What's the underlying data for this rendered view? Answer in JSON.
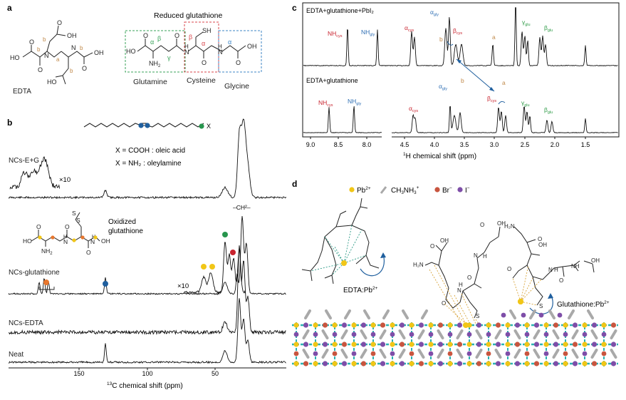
{
  "panels": {
    "a": {
      "letter": "a",
      "edta_label": "EDTA",
      "edta_atoms": {
        "ho1": "HO",
        "o1": "O",
        "oh1": "OH",
        "o2": "O",
        "n1": "N",
        "n2": "N",
        "ho2": "HO",
        "o3": "O",
        "oh2": "OH",
        "o4": "O",
        "lab_a": "a",
        "lab_b1": "b",
        "lab_b2": "b",
        "lab_b3": "b",
        "lab_b4": "b"
      },
      "glutathione_title": "Reduced glutathione",
      "glutathione_atoms": {
        "ho": "HO",
        "o1": "O",
        "nh2": "NH",
        "nh2sub": "2",
        "h1": "H",
        "n1": "N",
        "o2": "O",
        "sh": "SH",
        "o3": "O",
        "h2": "H",
        "n2": "N",
        "oh": "OH",
        "o4": "O"
      },
      "greek": {
        "alpha_glu": "α",
        "beta_glu": "β",
        "gamma_glu": "γ",
        "beta_cys": "β",
        "alpha_cys": "α",
        "alpha_gly": "α"
      },
      "residues": {
        "glutamine": "Glutamine",
        "cysteine": "Cysteine",
        "glycine": "Glycine"
      },
      "colors": {
        "glu": "#3aa35a",
        "cys": "#d9464b",
        "gly": "#3d86c6",
        "edta_label": "#c0894a"
      }
    },
    "b": {
      "letter": "b",
      "ligand_x": "X",
      "legend_cooh": "X = COOH : oleic acid",
      "legend_nh2": "X = NH₂ : oleylamine",
      "oxidized_title1": "Oxidized",
      "oxidized_title2": "glutathione",
      "ox_atoms": {
        "ho": "HO",
        "o1": "O",
        "nh2": "NH",
        "nh2sub": "2",
        "s1": "S",
        "s2": "S",
        "n1": "N",
        "h1": "H",
        "o2": "O",
        "h2": "H",
        "n2": "N",
        "o3": "O",
        "oh": "OH"
      },
      "traces": {
        "nce": "NCs-E+G",
        "ncg": "NCs-glutathione",
        "nced": "NCs-EDTA",
        "neat": "Neat"
      },
      "x10_a": "×10",
      "x10_b": "×10",
      "ch2_label": "–CH²–",
      "xaxis": {
        "label_pre": "13",
        "label_main": "C chemical shift (ppm)",
        "ticks": [
          "150",
          "100",
          "50"
        ]
      },
      "marker_colors": {
        "blue": "#1f5f9e",
        "green": "#27954d",
        "yellow": "#f1c617",
        "orange": "#e8772e",
        "red": "#c8232e"
      }
    },
    "c": {
      "letter": "c",
      "top_label": "EDTA+glutathione+PbI₂",
      "bottom_label": "EDTA+glutathione",
      "top_peaks": {
        "nh_cys": "NH",
        "nh_cys_sub": "cys",
        "nh_gly": "NH",
        "nh_gly_sub": "gly",
        "a_cys": "α",
        "a_cys_sub": "cys",
        "a_gly": "α",
        "a_gly_sub": "gly",
        "b": "b",
        "b_cys": "β",
        "b_cys_sub": "cys",
        "a": "a",
        "g_glu": "γ",
        "g_glu_sub": "glu",
        "b_glu": "β",
        "b_glu_sub": "glu"
      },
      "bottom_peaks": {
        "nh_cys": "NH",
        "nh_cys_sub": "cys",
        "nh_gly": "NH",
        "nh_gly_sub": "gly",
        "a_cys": "α",
        "a_cys_sub": "cys",
        "a_gly": "α",
        "a_gly_sub": "gly",
        "b": "b",
        "b_cys": "β",
        "b_cys_sub": "cys",
        "a": "a",
        "g_glu": "γ",
        "g_glu_sub": "glu",
        "b_glu": "β",
        "b_glu_sub": "glu"
      },
      "xaxis": {
        "label_pre": "1",
        "label_main": "H chemical shift (ppm)",
        "ticks": [
          "9.0",
          "8.5",
          "8.0",
          "4.5",
          "4.0",
          "3.5",
          "3.0",
          "2.5",
          "2.0",
          "1.5"
        ]
      },
      "colors": {
        "cys": "#c8232e",
        "gly": "#2f6fb4",
        "glu": "#2c9a45",
        "edta": "#c0894a"
      }
    },
    "d": {
      "letter": "d",
      "legend": {
        "pb_main": "Pb",
        "pb_sup": "2+",
        "ma_main": "CH",
        "ma_sub1": "3",
        "ma_mid": "NH",
        "ma_sub2": "3",
        "ma_sup": "+",
        "br_main": "Br",
        "br_sup": "−",
        "i_main": "I",
        "i_sup": "−"
      },
      "edta_pb_main": "EDTA:Pb",
      "edta_pb_sup": "2+",
      "glut_pb_main": "Glutathione:Pb",
      "glut_pb_sup": "2+",
      "mid_atoms": {
        "h2n": "H₂N",
        "oh1": "OH",
        "o1": "O",
        "o2": "O",
        "oh2": "OH",
        "n1": "N",
        "h1": "H",
        "o3": "O",
        "n2": "N",
        "h2": "H",
        "s": "S",
        "o4": "O"
      },
      "right_atoms": {
        "h2n": "H₂N",
        "o1": "O",
        "oh1": "OH",
        "oh2": "OH",
        "o2": "O",
        "n1": "N",
        "h1": "H",
        "o3": "O",
        "nh": "NH",
        "s": "S"
      },
      "colors": {
        "pb": "#f1c617",
        "ma": "#a9a9a9",
        "br": "#c8553f",
        "i": "#7e4ea8",
        "arrow": "#1f5f9e"
      }
    }
  }
}
